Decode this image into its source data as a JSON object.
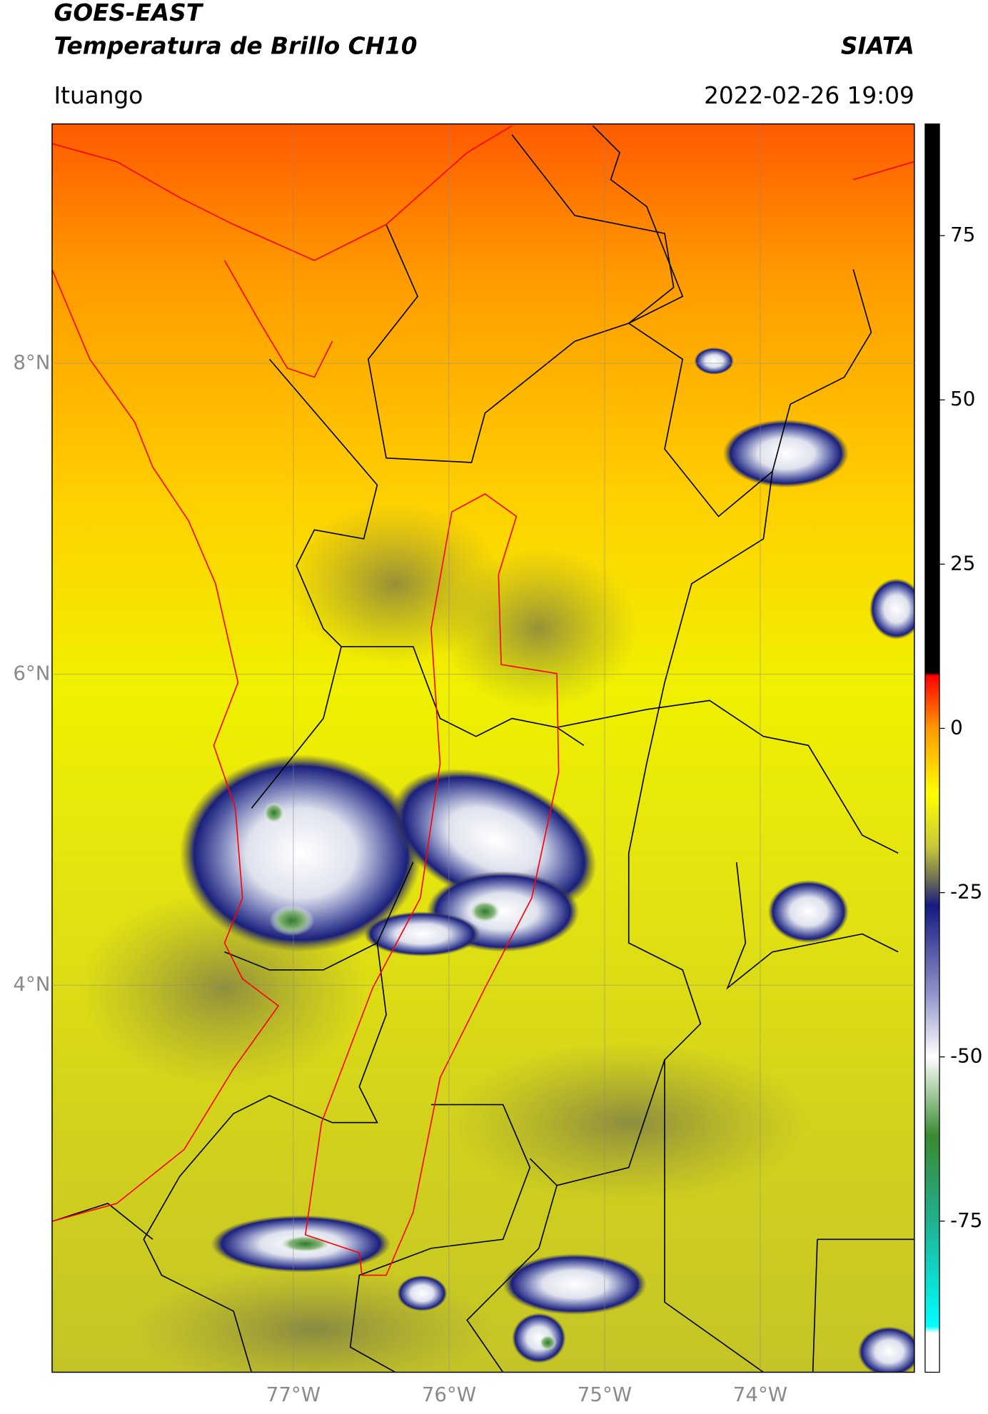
{
  "chart_data": {
    "type": "map",
    "title": "GOES-EAST",
    "subtitle": "Temperatura de Brillo CH10",
    "source": "SIATA",
    "region": "Ituango",
    "datetime": "2022-02-26 19:09",
    "xlim": [
      -78.55,
      -73.01
    ],
    "ylim": [
      1.51,
      9.54
    ],
    "xticks": [
      {
        "value": -77,
        "label": "77°W"
      },
      {
        "value": -76,
        "label": "76°W"
      },
      {
        "value": -75,
        "label": "75°W"
      },
      {
        "value": -74,
        "label": "74°W"
      }
    ],
    "yticks": [
      {
        "value": 4,
        "label": "4°N"
      },
      {
        "value": 6,
        "label": "6°N"
      },
      {
        "value": 8,
        "label": "8°N"
      }
    ],
    "grid": true,
    "colorbar": {
      "lim": [
        -98,
        92
      ],
      "ticks": [
        75,
        50,
        25,
        0,
        -25,
        -50,
        -75
      ],
      "stops": [
        {
          "value": 92,
          "color": "#000000"
        },
        {
          "value": 8.5,
          "color": "#000000"
        },
        {
          "value": 8,
          "color": "#ff0000"
        },
        {
          "value": 0,
          "color": "#ff9900"
        },
        {
          "value": -10,
          "color": "#ffff00"
        },
        {
          "value": -18,
          "color": "#c8c83a"
        },
        {
          "value": -23,
          "color": "#6e6e55"
        },
        {
          "value": -27,
          "color": "#141a80"
        },
        {
          "value": -40,
          "color": "#8c90c8"
        },
        {
          "value": -50,
          "color": "#ffffff"
        },
        {
          "value": -62,
          "color": "#3a8a30"
        },
        {
          "value": -75,
          "color": "#20b090"
        },
        {
          "value": -91,
          "color": "#00ffff"
        },
        {
          "value": -92,
          "color": "#ffffff"
        },
        {
          "value": -98,
          "color": "#ffffff"
        }
      ]
    }
  }
}
